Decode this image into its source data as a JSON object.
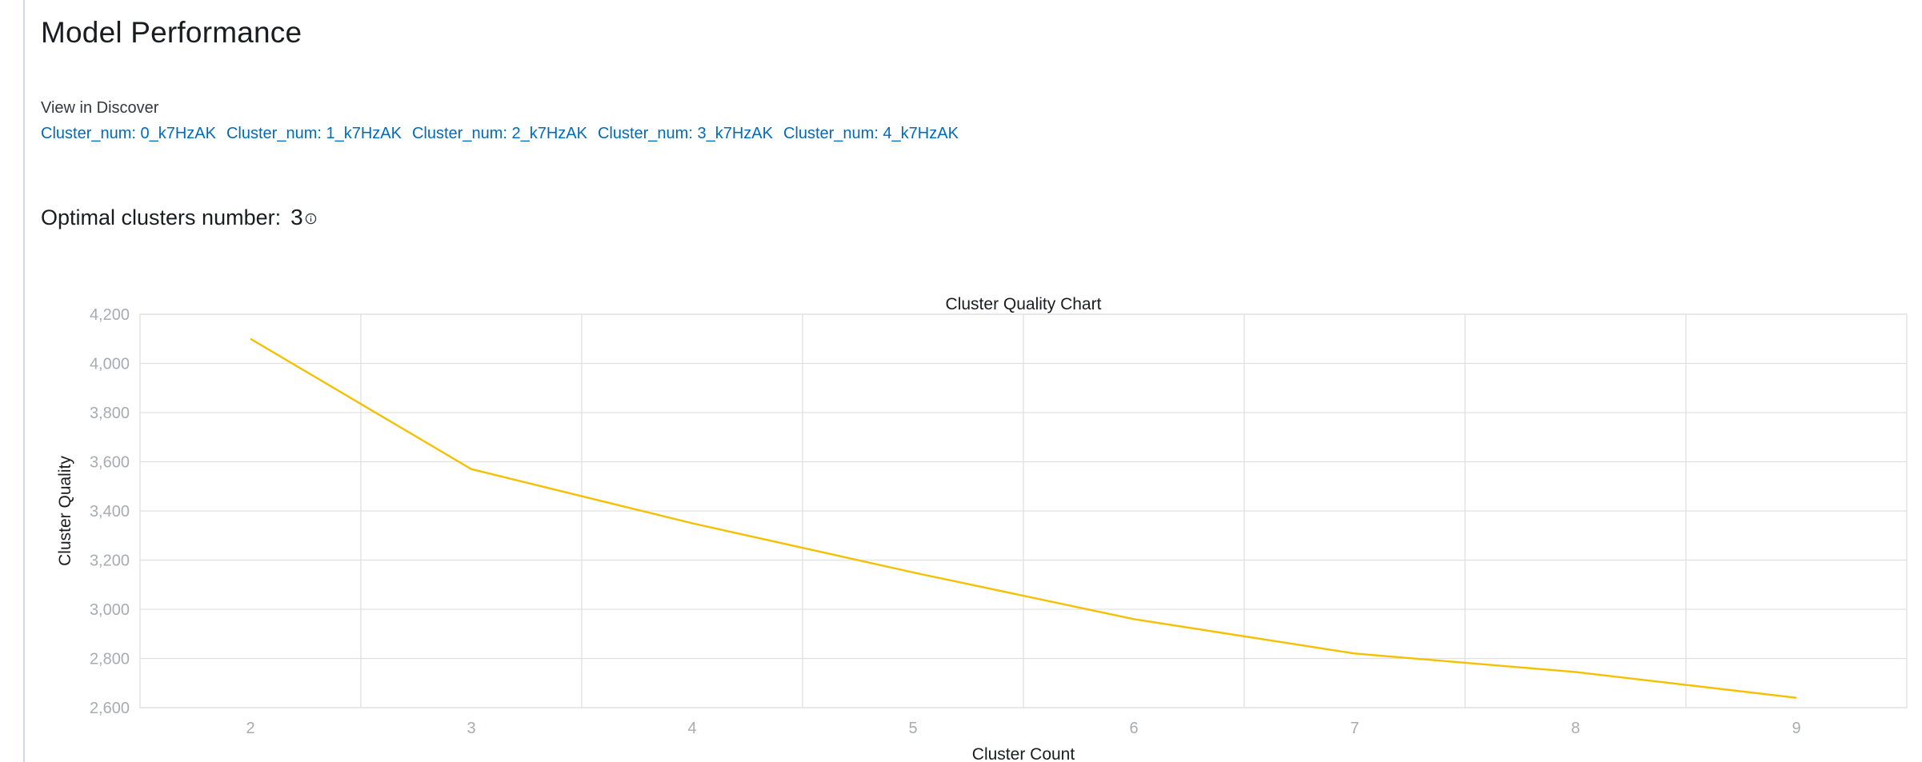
{
  "page": {
    "title": "Model Performance"
  },
  "discover": {
    "label": "View in Discover",
    "links": [
      "Cluster_num: 0_k7HzAK",
      "Cluster_num: 1_k7HzAK",
      "Cluster_num: 2_k7HzAK",
      "Cluster_num: 3_k7HzAK",
      "Cluster_num: 4_k7HzAK"
    ]
  },
  "optimal": {
    "label": "Optimal clusters number:",
    "value": "3",
    "info_icon": "info-icon"
  },
  "colors": {
    "link": "#006bb8",
    "line": "#f5c000",
    "grid": "#e0e0e0"
  },
  "chart_data": {
    "type": "line",
    "title": "Cluster Quality Chart",
    "xlabel": "Cluster Count",
    "ylabel": "Cluster Quality",
    "x": [
      2,
      3,
      4,
      5,
      6,
      7,
      8,
      9
    ],
    "values": [
      4100,
      3570,
      3350,
      3150,
      2960,
      2820,
      2745,
      2640
    ],
    "xlim": [
      1.5,
      9.5
    ],
    "ylim": [
      2600,
      4200
    ],
    "yticks": [
      2600,
      2800,
      3000,
      3200,
      3400,
      3600,
      3800,
      4000,
      4200
    ],
    "ytick_labels": [
      "2,600",
      "2,800",
      "3,000",
      "3,200",
      "3,400",
      "3,600",
      "3,800",
      "4,000",
      "4,200"
    ],
    "xtick_labels": [
      "2",
      "3",
      "4",
      "5",
      "6",
      "7",
      "8",
      "9"
    ],
    "grid": true,
    "legend": "none"
  }
}
